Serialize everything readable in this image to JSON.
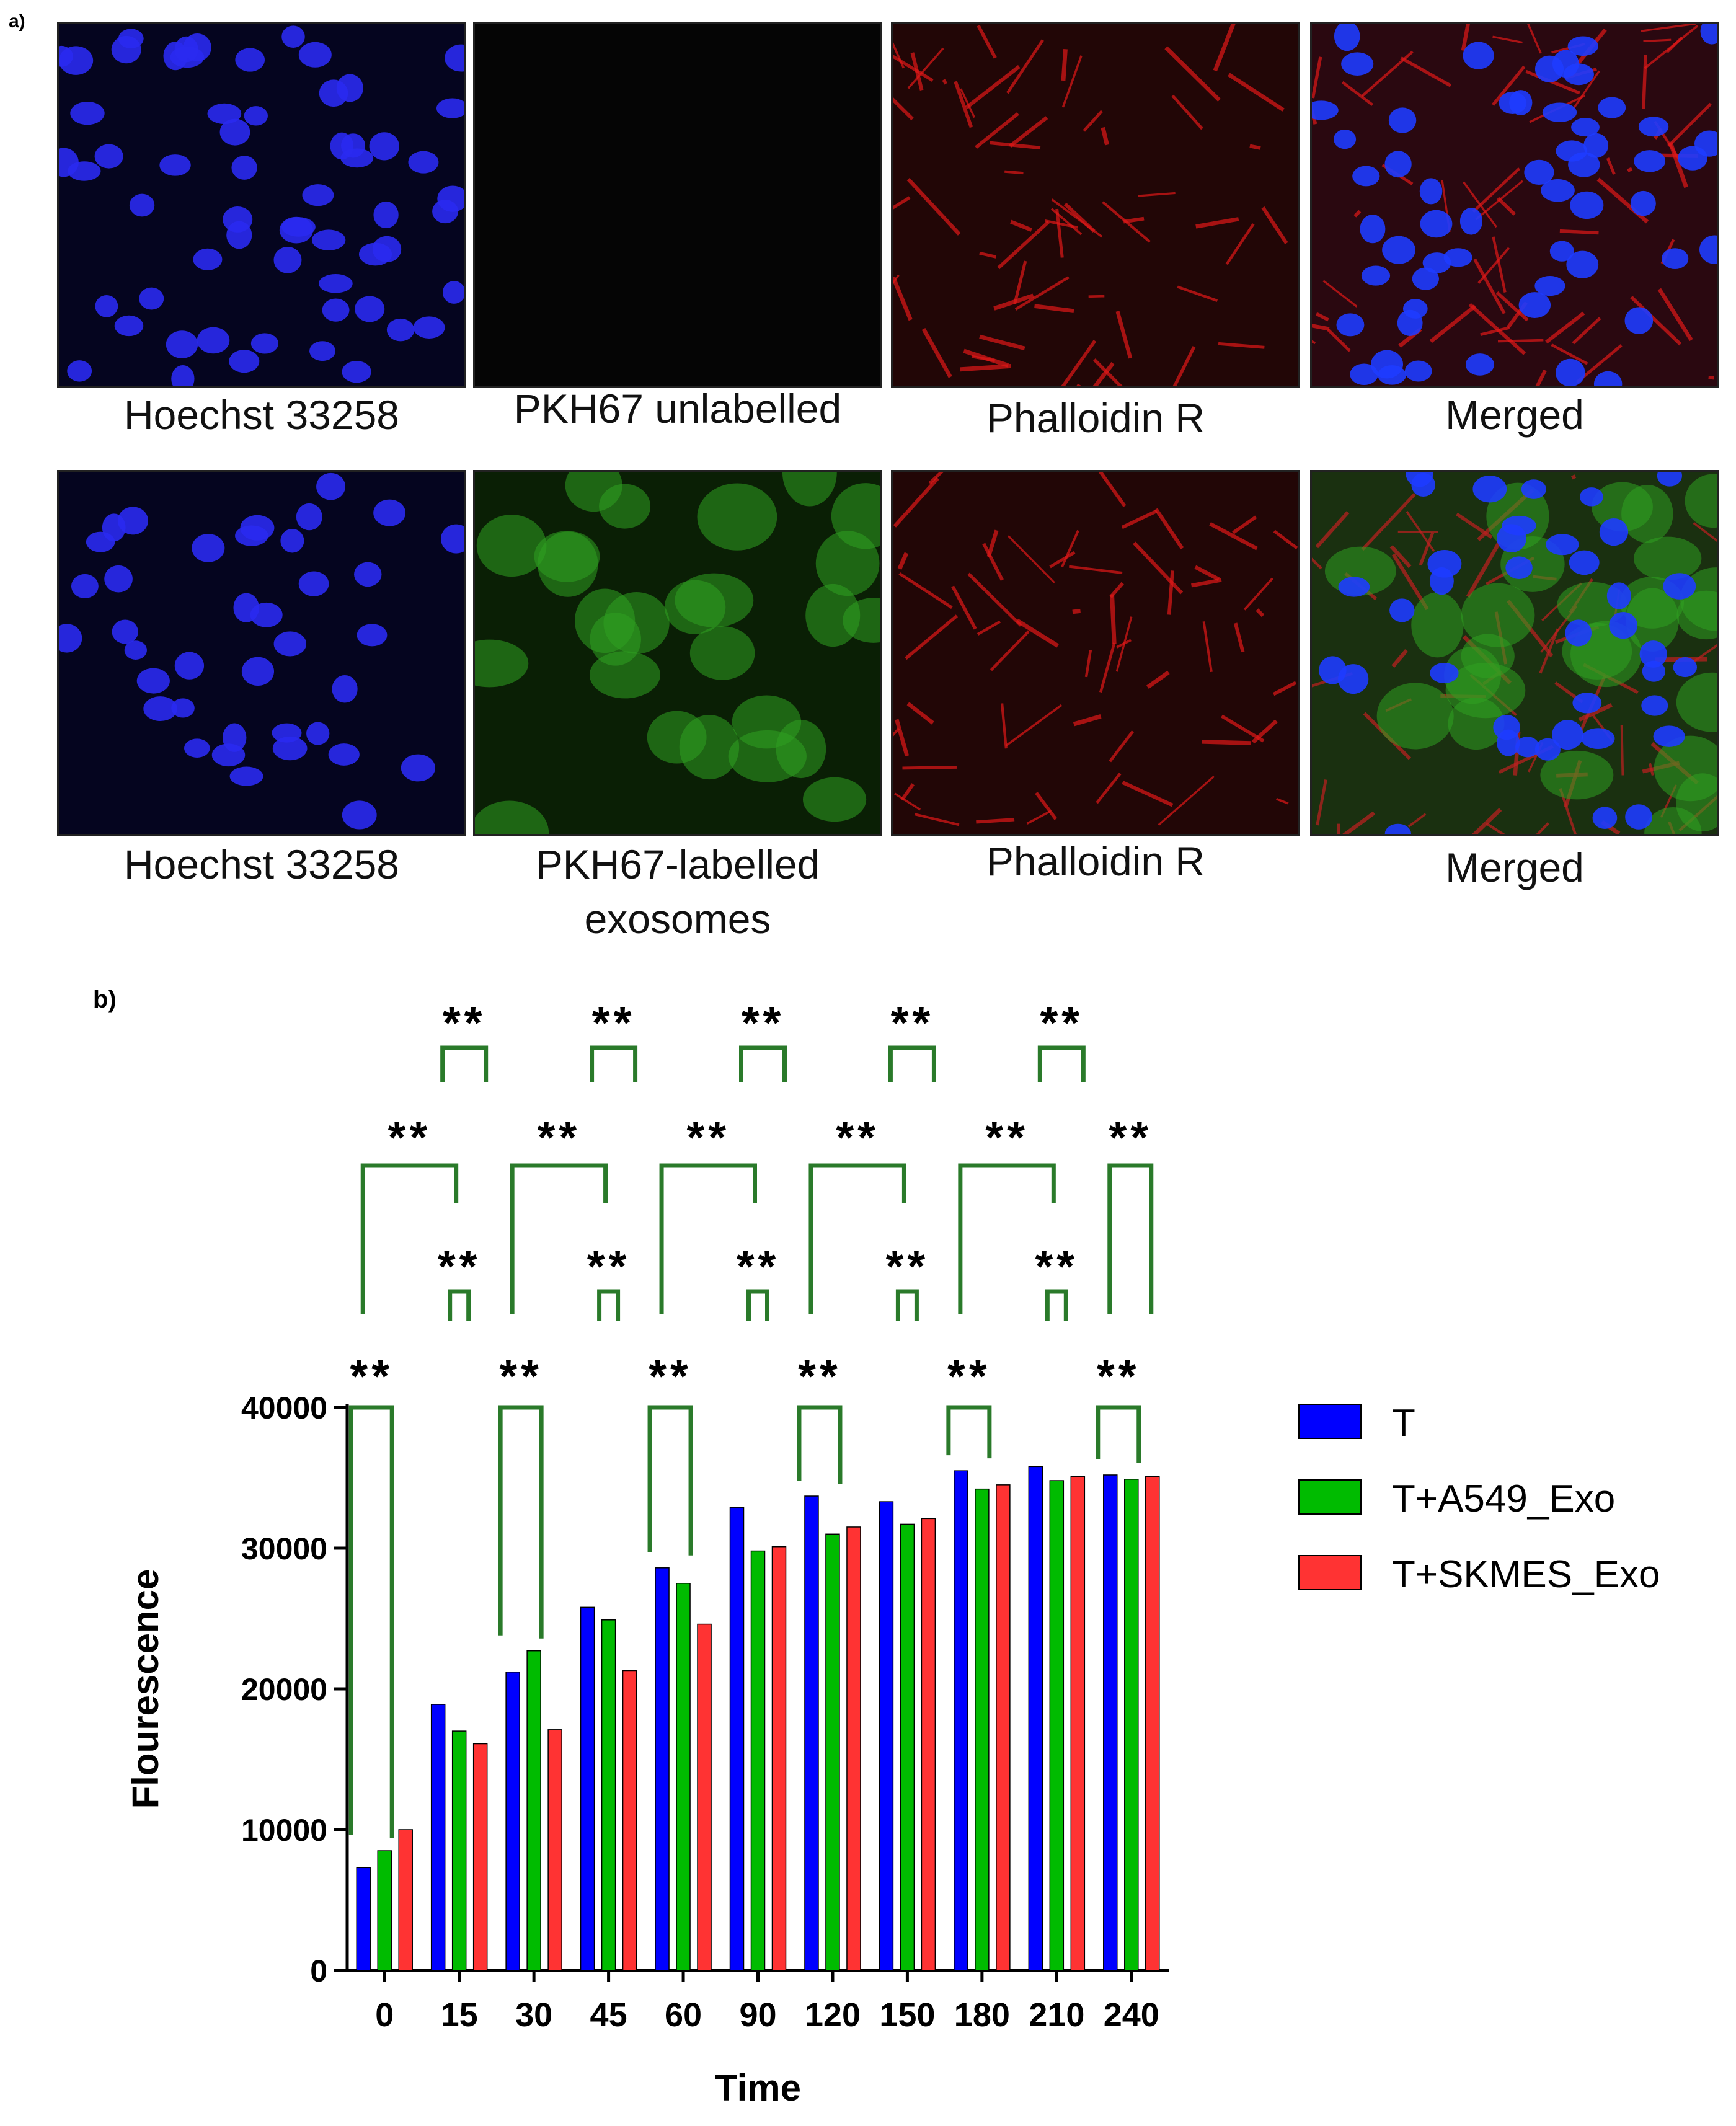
{
  "panel_a": {
    "label": "a)",
    "rows": [
      {
        "images": [
          {
            "caption": "Hoechst 33258",
            "stain": "blue"
          },
          {
            "caption": "PKH67 unlabelled",
            "stain": "black"
          },
          {
            "caption": "Phalloidin R",
            "stain": "red"
          },
          {
            "caption": "Merged",
            "stain": "merged"
          }
        ]
      },
      {
        "images": [
          {
            "caption": "Hoechst 33258",
            "stain": "blue"
          },
          {
            "caption": "PKH67-labelled\nexosomes",
            "stain": "green"
          },
          {
            "caption": "Phalloidin R",
            "stain": "red"
          },
          {
            "caption": "Merged",
            "stain": "merged_green"
          }
        ]
      }
    ]
  },
  "panel_b": {
    "label": "b)"
  },
  "chart_data": {
    "type": "bar",
    "title": "",
    "xlabel": "Time",
    "ylabel": "Flourescence",
    "ylim": [
      0,
      40000
    ],
    "yticks": [
      0,
      10000,
      20000,
      30000,
      40000
    ],
    "categories": [
      "0",
      "15",
      "30",
      "45",
      "60",
      "90",
      "120",
      "150",
      "180",
      "210",
      "240"
    ],
    "series": [
      {
        "name": "T",
        "color": "#0000ff",
        "values": [
          7300,
          18900,
          21200,
          25800,
          28600,
          32900,
          33700,
          33300,
          35500,
          35800,
          35200
        ]
      },
      {
        "name": "T+A549_Exo",
        "color": "#00bb00",
        "values": [
          8500,
          17000,
          22700,
          24900,
          27500,
          29800,
          31000,
          31700,
          34200,
          34800,
          34900
        ]
      },
      {
        "name": "T+SKMES_Exo",
        "color": "#ff3333",
        "values": [
          10000,
          16100,
          17100,
          21300,
          24600,
          30100,
          31500,
          32100,
          34500,
          35100,
          35100
        ]
      }
    ],
    "legend_position": "right",
    "significance": {
      "marker": "**",
      "bracket_color": "#2a7a2a",
      "low_brackets": [
        {
          "category": "0",
          "from_series": 0,
          "to_series": 1
        },
        {
          "category": "30",
          "from_series": 0,
          "to_series": 1
        },
        {
          "category": "60",
          "from_series": 0,
          "to_series": 1
        },
        {
          "category": "120",
          "from_series": 0,
          "to_series": 1
        },
        {
          "category": "180",
          "from_series": 0,
          "to_series": 1
        },
        {
          "category": "240",
          "from_series": 0,
          "to_series": 1
        }
      ],
      "tier1": [
        "15",
        "45",
        "90",
        "150",
        "210"
      ],
      "tier2": [
        [
          "0",
          "15"
        ],
        [
          "30",
          "45"
        ],
        [
          "60",
          "90"
        ],
        [
          "120",
          "150"
        ],
        [
          "180",
          "210"
        ],
        [
          "240",
          "240"
        ]
      ],
      "tier3": [
        "15",
        "45",
        "90",
        "150",
        "210"
      ]
    }
  }
}
